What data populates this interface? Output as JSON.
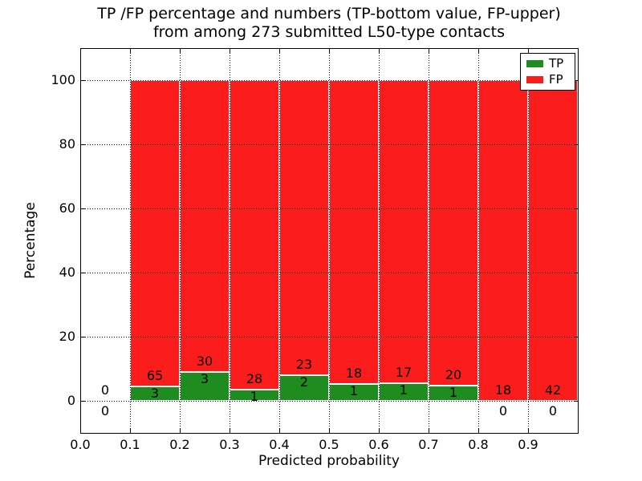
{
  "chart_data": {
    "type": "bar",
    "stacked": true,
    "title_lines": [
      "TP /FP percentage and numbers (TP-bottom value, FP-upper)",
      "from among 273 submitted L50-type contacts"
    ],
    "xlabel": "Predicted probability",
    "ylabel": "Percentage",
    "xlim": [
      0.0,
      1.0
    ],
    "ylim": [
      -10,
      110
    ],
    "x_ticks": [
      {
        "value": 0.0,
        "label": "0.0"
      },
      {
        "value": 0.1,
        "label": "0.1"
      },
      {
        "value": 0.2,
        "label": "0.2"
      },
      {
        "value": 0.3,
        "label": "0.3"
      },
      {
        "value": 0.4,
        "label": "0.4"
      },
      {
        "value": 0.5,
        "label": "0.5"
      },
      {
        "value": 0.6,
        "label": "0.6"
      },
      {
        "value": 0.7,
        "label": "0.7"
      },
      {
        "value": 0.8,
        "label": "0.8"
      },
      {
        "value": 0.9,
        "label": "0.9"
      },
      {
        "value": 1.0,
        "label": ""
      }
    ],
    "y_ticks": [
      {
        "value": 0,
        "label": "0"
      },
      {
        "value": 20,
        "label": "20"
      },
      {
        "value": 40,
        "label": "40"
      },
      {
        "value": 60,
        "label": "60"
      },
      {
        "value": 80,
        "label": "80"
      },
      {
        "value": 100,
        "label": "100"
      }
    ],
    "grid": {
      "enabled": true,
      "style": "dotted",
      "color": "#000000"
    },
    "legend": {
      "position": "upper-right",
      "entries": [
        {
          "label": "TP",
          "color": "#1e8c1e"
        },
        {
          "label": "FP",
          "color": "#fb1c1c"
        }
      ]
    },
    "colors": {
      "tp": "#1e8c1e",
      "fp": "#fb1c1c",
      "bar_edge": "#ffffff"
    },
    "total_contacts": 273,
    "percent_rule": "tp_pct = 100*tp_count/(tp_count+fp_count); fp stacked above to 100%",
    "bins": [
      {
        "x_range": [
          0.0,
          0.1
        ],
        "tp_count": 0,
        "fp_count": 0
      },
      {
        "x_range": [
          0.1,
          0.2
        ],
        "tp_count": 3,
        "fp_count": 65
      },
      {
        "x_range": [
          0.2,
          0.3
        ],
        "tp_count": 3,
        "fp_count": 30
      },
      {
        "x_range": [
          0.3,
          0.4
        ],
        "tp_count": 1,
        "fp_count": 28
      },
      {
        "x_range": [
          0.4,
          0.5
        ],
        "tp_count": 2,
        "fp_count": 23
      },
      {
        "x_range": [
          0.5,
          0.6
        ],
        "tp_count": 1,
        "fp_count": 18
      },
      {
        "x_range": [
          0.6,
          0.7
        ],
        "tp_count": 1,
        "fp_count": 17
      },
      {
        "x_range": [
          0.7,
          0.8
        ],
        "tp_count": 1,
        "fp_count": 20
      },
      {
        "x_range": [
          0.8,
          0.9
        ],
        "tp_count": 0,
        "fp_count": 18
      },
      {
        "x_range": [
          0.9,
          1.0
        ],
        "tp_count": 0,
        "fp_count": 42
      }
    ]
  }
}
